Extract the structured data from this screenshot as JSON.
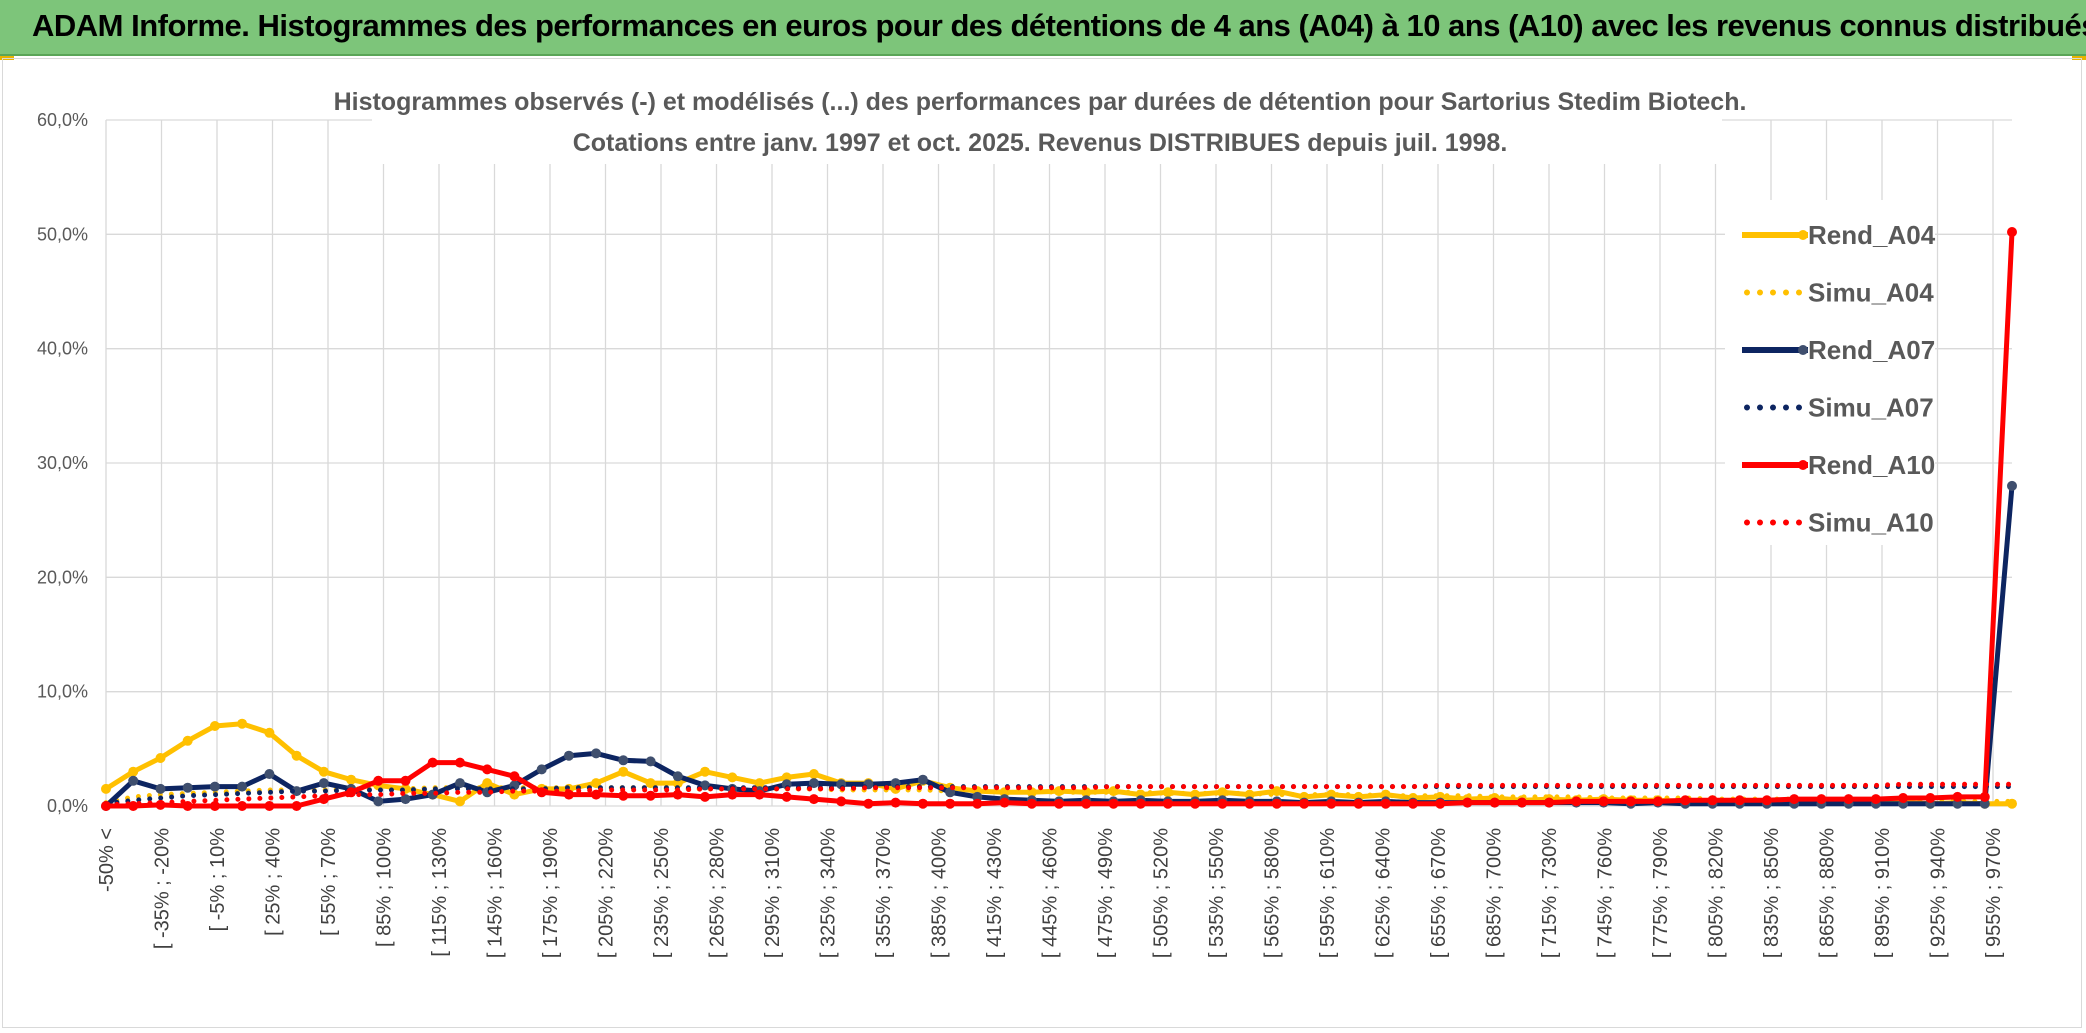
{
  "header": {
    "title": "ADAM Informe. Histogrammes des performances en euros pour des détentions de 4 ans (A04) à 10 ans (A10) avec les revenus connus distribués"
  },
  "chart_data": {
    "type": "line",
    "title_line1": "Histogrammes observés (-) et modélisés (...) des performances par durées de détention pour Sartorius Stedim Biotech.",
    "title_line2": "Cotations entre janv. 1997 et oct. 2025. Revenus DISTRIBUES depuis juil. 1998.",
    "ylim": [
      0,
      60
    ],
    "yticks": [
      "0,0%",
      "10,0%",
      "20,0%",
      "30,0%",
      "40,0%",
      "50,0%",
      "60,0%"
    ],
    "grid": true,
    "legend_position": "right",
    "x_labels": [
      "-50% <",
      "[ -35% ; -20%",
      "[ -5% ; 10%",
      "[ 25% ; 40%",
      "[ 55% ; 70%",
      "[ 85% ; 100%",
      "[ 115% ; 130%",
      "[ 145% ; 160%",
      "[ 175% ; 190%",
      "[ 205% ; 220%",
      "[ 235% ; 250%",
      "[ 265% ; 280%",
      "[ 295% ; 310%",
      "[ 325% ; 340%",
      "[ 355% ; 370%",
      "[ 385% ; 400%",
      "[ 415% ; 430%",
      "[ 445% ; 460%",
      "[ 475% ; 490%",
      "[ 505% ; 520%",
      "[ 535% ; 550%",
      "[ 565% ; 580%",
      "[ 595% ; 610%",
      "[ 625% ; 640%",
      "[ 655% ; 670%",
      "[ 685% ; 700%",
      "[ 715% ; 730%",
      "[ 745% ; 760%",
      "[ 775% ; 790%",
      "[ 805% ; 820%",
      "[ 835% ; 850%",
      "[ 865% ; 880%",
      "[ 895% ; 910%",
      "[ 925% ; 940%",
      "[ 955% ; 970%"
    ],
    "series": [
      {
        "name": "Rend_A04",
        "style": "solid",
        "color": "#ffc000",
        "values": [
          1.5,
          3.0,
          4.2,
          5.7,
          7.0,
          7.2,
          6.4,
          4.4,
          3.0,
          2.3,
          1.8,
          1.5,
          1.0,
          0.4,
          2.0,
          1.0,
          1.5,
          1.5,
          2.0,
          3.0,
          2.0,
          2.0,
          3.0,
          2.5,
          2.0,
          2.5,
          2.8,
          2.0,
          2.0,
          1.5,
          2.2,
          1.6,
          1.3,
          1.2,
          1.2,
          1.3,
          1.2,
          1.3,
          1.0,
          1.2,
          1.0,
          1.2,
          1.0,
          1.3,
          0.8,
          1.0,
          0.8,
          1.0,
          0.7,
          0.8,
          0.6,
          0.7,
          0.5,
          0.6,
          0.5,
          0.6,
          0.5,
          0.5,
          0.4,
          0.5,
          0.4,
          0.4,
          0.4,
          0.3,
          0.4,
          0.3,
          0.3,
          0.2,
          0.3,
          0.2,
          0.2
        ]
      },
      {
        "name": "Simu_A04",
        "style": "dotted",
        "color": "#ffc000",
        "values": [
          0.3,
          0.8,
          1.0,
          1.1,
          1.2,
          1.3,
          1.4,
          1.4,
          1.4,
          1.5,
          1.5,
          1.5,
          1.6,
          1.6,
          1.6,
          1.6,
          1.6,
          1.6,
          1.6,
          1.6,
          1.6,
          1.5,
          1.5,
          1.5,
          1.5,
          1.5,
          1.5,
          1.4,
          1.4,
          1.4,
          1.4,
          1.3,
          1.3,
          1.3,
          1.3,
          1.2,
          1.2,
          1.2,
          1.2,
          1.1,
          1.1,
          1.1,
          1.1,
          1.0,
          1.0,
          1.0,
          1.0,
          0.9,
          0.9,
          0.9,
          0.9,
          0.8,
          0.8,
          0.8,
          0.8,
          0.7,
          0.7,
          0.7,
          0.7,
          0.6,
          0.6,
          0.6,
          0.6,
          0.5,
          0.5,
          0.5,
          0.5,
          0.4,
          0.4,
          0.4,
          0.4
        ]
      },
      {
        "name": "Rend_A07",
        "style": "solid",
        "color": "#0d2561",
        "values": [
          0.0,
          2.2,
          1.5,
          1.6,
          1.7,
          1.7,
          2.8,
          1.3,
          2.0,
          1.5,
          0.4,
          0.6,
          1.0,
          2.0,
          1.2,
          1.8,
          3.2,
          4.4,
          4.6,
          4.0,
          3.9,
          2.6,
          1.8,
          1.5,
          1.3,
          1.9,
          2.0,
          1.9,
          1.9,
          2.0,
          2.3,
          1.2,
          0.8,
          0.6,
          0.5,
          0.4,
          0.5,
          0.4,
          0.5,
          0.4,
          0.4,
          0.5,
          0.4,
          0.4,
          0.3,
          0.4,
          0.3,
          0.4,
          0.3,
          0.3,
          0.3,
          0.3,
          0.3,
          0.3,
          0.3,
          0.3,
          0.2,
          0.3,
          0.2,
          0.2,
          0.2,
          0.2,
          0.2,
          0.2,
          0.2,
          0.2,
          0.2,
          0.2,
          0.2,
          0.2,
          28.0
        ]
      },
      {
        "name": "Simu_A07",
        "style": "dotted",
        "color": "#0d2561",
        "values": [
          0.2,
          0.5,
          0.7,
          0.9,
          1.0,
          1.1,
          1.2,
          1.3,
          1.3,
          1.4,
          1.4,
          1.4,
          1.5,
          1.5,
          1.5,
          1.5,
          1.5,
          1.6,
          1.6,
          1.6,
          1.6,
          1.6,
          1.6,
          1.6,
          1.6,
          1.6,
          1.6,
          1.6,
          1.7,
          1.7,
          1.7,
          1.7,
          1.7,
          1.7,
          1.7,
          1.7,
          1.7,
          1.7,
          1.7,
          1.7,
          1.7,
          1.7,
          1.7,
          1.7,
          1.7,
          1.7,
          1.7,
          1.7,
          1.7,
          1.7,
          1.7,
          1.7,
          1.7,
          1.7,
          1.7,
          1.7,
          1.7,
          1.7,
          1.7,
          1.7,
          1.7,
          1.7,
          1.7,
          1.7,
          1.7,
          1.7,
          1.7,
          1.7,
          1.7,
          1.7,
          1.7
        ]
      },
      {
        "name": "Rend_A10",
        "style": "solid",
        "color": "#ff0000",
        "values": [
          0.0,
          0.0,
          0.1,
          0.0,
          0.0,
          0.0,
          0.0,
          0.0,
          0.6,
          1.2,
          2.2,
          2.2,
          3.8,
          3.8,
          3.2,
          2.6,
          1.2,
          1.0,
          1.0,
          0.9,
          0.9,
          1.0,
          0.8,
          1.0,
          1.0,
          0.8,
          0.6,
          0.4,
          0.2,
          0.3,
          0.2,
          0.2,
          0.2,
          0.3,
          0.2,
          0.2,
          0.2,
          0.2,
          0.2,
          0.2,
          0.2,
          0.2,
          0.2,
          0.2,
          0.2,
          0.2,
          0.2,
          0.2,
          0.2,
          0.2,
          0.3,
          0.3,
          0.3,
          0.3,
          0.4,
          0.4,
          0.4,
          0.4,
          0.5,
          0.5,
          0.5,
          0.5,
          0.6,
          0.6,
          0.6,
          0.6,
          0.7,
          0.7,
          0.8,
          0.8,
          50.2
        ]
      },
      {
        "name": "Simu_A10",
        "style": "dotted",
        "color": "#ff0000",
        "values": [
          0.1,
          0.2,
          0.3,
          0.4,
          0.5,
          0.6,
          0.7,
          0.8,
          0.9,
          1.0,
          1.0,
          1.1,
          1.1,
          1.2,
          1.2,
          1.3,
          1.3,
          1.3,
          1.4,
          1.4,
          1.4,
          1.4,
          1.5,
          1.5,
          1.5,
          1.5,
          1.5,
          1.5,
          1.6,
          1.6,
          1.6,
          1.6,
          1.6,
          1.6,
          1.6,
          1.6,
          1.6,
          1.7,
          1.7,
          1.7,
          1.7,
          1.7,
          1.7,
          1.7,
          1.7,
          1.7,
          1.7,
          1.7,
          1.7,
          1.8,
          1.8,
          1.8,
          1.8,
          1.8,
          1.8,
          1.8,
          1.8,
          1.8,
          1.8,
          1.8,
          1.8,
          1.8,
          1.8,
          1.8,
          1.8,
          1.8,
          1.9,
          1.9,
          1.9,
          1.9,
          1.9
        ]
      }
    ]
  }
}
